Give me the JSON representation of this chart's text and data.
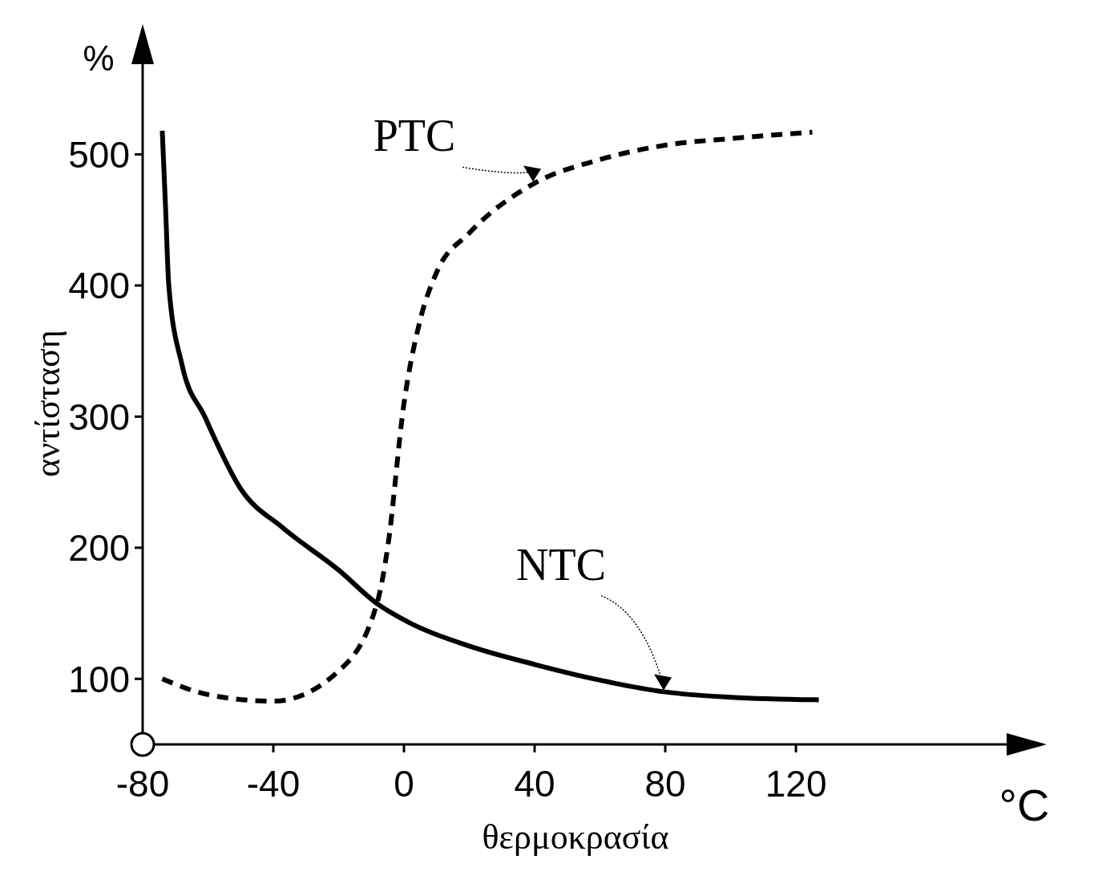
{
  "chart_data": {
    "type": "line",
    "xlabel": "θερμοκρασία",
    "ylabel": "αντίσταση",
    "annotations": [
      "%",
      "°C"
    ],
    "xlim": [
      -80,
      185
    ],
    "xticks": [
      -80,
      -40,
      0,
      40,
      80,
      120
    ],
    "ylim": [
      50,
      570
    ],
    "yticks": [
      100,
      200,
      300,
      400,
      500
    ],
    "grid": false,
    "legend": false,
    "marker": "none",
    "series": [
      {
        "name": "PTC",
        "color": "#000000",
        "line_style": "dashed",
        "x": [
          -74,
          -60,
          -40,
          -20,
          -8,
          -5,
          0,
          5,
          10,
          20,
          40,
          60,
          80,
          100,
          125
        ],
        "values": [
          100,
          88,
          83,
          106,
          160,
          200,
          310,
          374,
          410,
          440,
          478,
          496,
          507,
          512,
          517
        ]
      },
      {
        "name": "NTC",
        "color": "#000000",
        "line_style": "solid",
        "x": [
          -74,
          -73,
          -72,
          -68,
          -61,
          -50,
          -37,
          -20,
          -8,
          0,
          20,
          40,
          60,
          80,
          100,
          127
        ],
        "values": [
          518,
          460,
          400,
          340,
          300,
          245,
          215,
          183,
          157,
          145,
          125,
          111,
          99,
          90,
          86,
          84
        ]
      }
    ]
  }
}
